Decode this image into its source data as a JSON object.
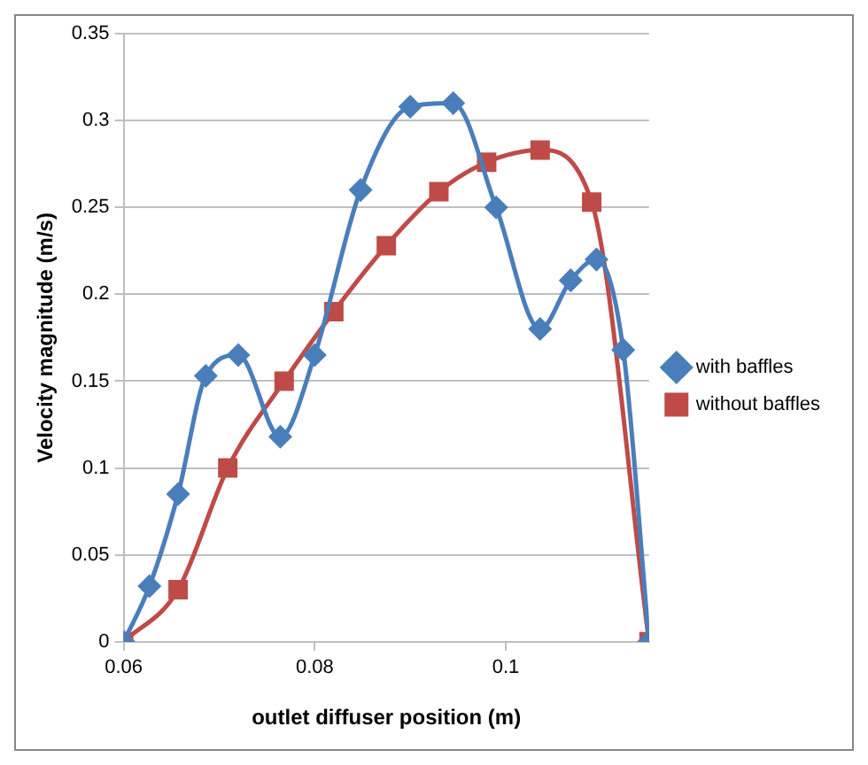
{
  "chart_data": {
    "type": "line",
    "xlabel": "outlet diffuser position (m)",
    "ylabel": "Velocity magnitude (m/s)",
    "xlim": [
      0.06,
      0.115
    ],
    "xticks": [
      0.06,
      0.08,
      0.1
    ],
    "ylim": [
      0,
      0.35
    ],
    "yticks": [
      0,
      0.05,
      0.1,
      0.15,
      0.2,
      0.25,
      0.3,
      0.35
    ],
    "grid": "y",
    "legend": "right",
    "series": [
      {
        "name": "with baffles",
        "color": "#4a7ebb",
        "marker": "diamond",
        "x": [
          0.06,
          0.0627,
          0.0657,
          0.0686,
          0.072,
          0.0764,
          0.08,
          0.0848,
          0.09,
          0.0945,
          0.099,
          0.1036,
          0.1068,
          0.1095,
          0.1123,
          0.115
        ],
        "values": [
          0,
          0.032,
          0.085,
          0.153,
          0.165,
          0.118,
          0.165,
          0.26,
          0.308,
          0.31,
          0.25,
          0.18,
          0.208,
          0.22,
          0.168,
          0
        ]
      },
      {
        "name": "without baffles",
        "color": "#be4b48",
        "marker": "square",
        "x": [
          0.06,
          0.0657,
          0.0709,
          0.0768,
          0.082,
          0.0875,
          0.093,
          0.098,
          0.1036,
          0.109,
          0.115
        ],
        "values": [
          0,
          0.03,
          0.1,
          0.15,
          0.19,
          0.228,
          0.259,
          0.276,
          0.283,
          0.253,
          0
        ]
      }
    ]
  }
}
